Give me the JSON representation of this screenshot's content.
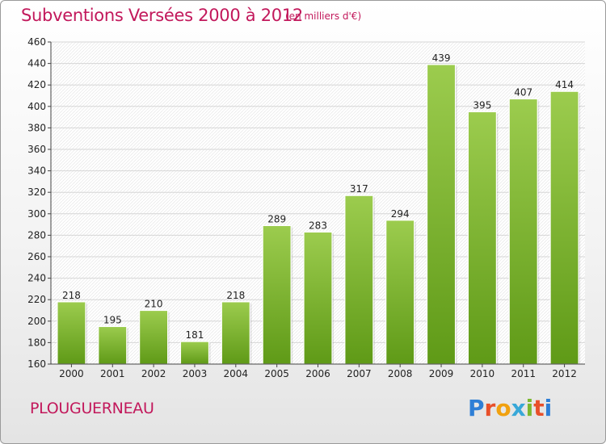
{
  "header": {
    "title": "Subventions Versées 2000 à 2012",
    "subtitle": "(en milliers d'€)"
  },
  "footer": {
    "commune": "PLOUGUERNEAU",
    "logo_text": "Proxiti"
  },
  "colors": {
    "title": "#c2185b",
    "bar_top": "#9ccc4e",
    "bar_bottom": "#5f9a17",
    "axis": "#444444",
    "grid": "#d6d6d6"
  },
  "chart_data": {
    "type": "bar",
    "categories": [
      "2000",
      "2001",
      "2002",
      "2003",
      "2004",
      "2005",
      "2006",
      "2007",
      "2008",
      "2009",
      "2010",
      "2011",
      "2012"
    ],
    "values": [
      218,
      195,
      210,
      181,
      218,
      289,
      283,
      317,
      294,
      439,
      395,
      407,
      414
    ],
    "title": "Subventions Versées 2000 à 2012",
    "xlabel": "",
    "ylabel": "",
    "ylim": [
      160,
      460
    ],
    "yticks": [
      160,
      180,
      200,
      220,
      240,
      260,
      280,
      300,
      320,
      340,
      360,
      380,
      400,
      420,
      440,
      460
    ],
    "grid": true
  }
}
